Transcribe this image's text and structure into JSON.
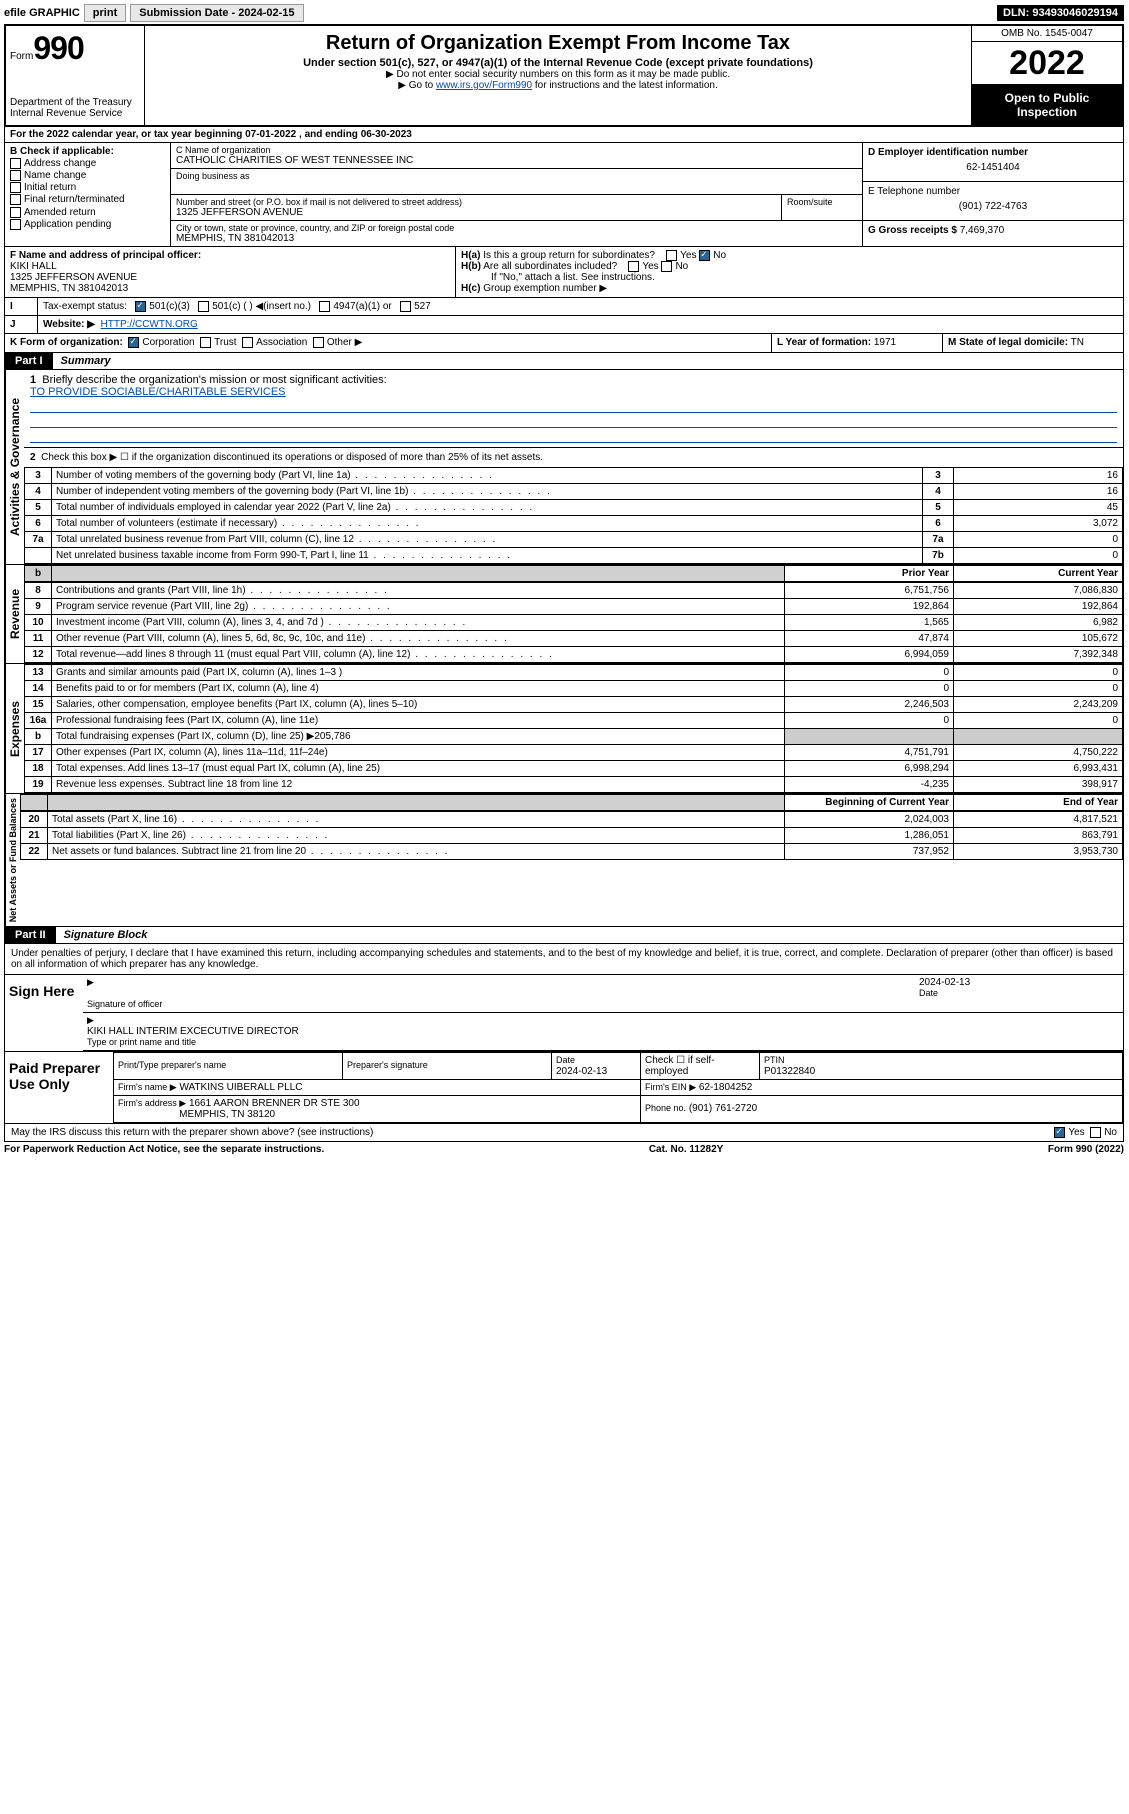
{
  "topbar": {
    "efile": "efile GRAPHIC",
    "print": "print",
    "sub_label": "Submission Date - 2024-02-15",
    "dln": "DLN: 93493046029194"
  },
  "header": {
    "form": "Form",
    "num": "990",
    "dept": "Department of the Treasury",
    "irs": "Internal Revenue Service",
    "title": "Return of Organization Exempt From Income Tax",
    "sub": "Under section 501(c), 527, or 4947(a)(1) of the Internal Revenue Code (except private foundations)",
    "note1": "▶ Do not enter social security numbers on this form as it may be made public.",
    "note2_pre": "▶ Go to ",
    "note2_link": "www.irs.gov/Form990",
    "note2_post": " for instructions and the latest information.",
    "omb": "OMB No. 1545-0047",
    "year": "2022",
    "open": "Open to Public Inspection"
  },
  "lineA": "For the 2022 calendar year, or tax year beginning 07-01-2022  , and ending 06-30-2023",
  "boxB": {
    "label": "B Check if applicable:",
    "items": [
      "Address change",
      "Name change",
      "Initial return",
      "Final return/terminated",
      "Amended return",
      "Application pending"
    ]
  },
  "boxC": {
    "label": "C Name of organization",
    "name": "CATHOLIC CHARITIES OF WEST TENNESSEE INC",
    "dba": "Doing business as",
    "street_lbl": "Number and street (or P.O. box if mail is not delivered to street address)",
    "suite": "Room/suite",
    "street": "1325 JEFFERSON AVENUE",
    "city_lbl": "City or town, state or province, country, and ZIP or foreign postal code",
    "city": "MEMPHIS, TN  381042013"
  },
  "boxD": {
    "label": "D Employer identification number",
    "val": "62-1451404"
  },
  "boxE": {
    "label": "E Telephone number",
    "val": "(901) 722-4763"
  },
  "boxG": {
    "label": "G Gross receipts $",
    "val": "7,469,370"
  },
  "boxF": {
    "label": "F Name and address of principal officer:",
    "name": "KIKI HALL",
    "addr1": "1325 JEFFERSON AVENUE",
    "addr2": "MEMPHIS, TN  381042013"
  },
  "boxH": {
    "a": "Is this a group return for subordinates?",
    "b": "Are all subordinates included?",
    "c": "If \"No,\" attach a list. See instructions.",
    "d": "Group exemption number ▶"
  },
  "boxI": {
    "label": "Tax-exempt status:",
    "opts": [
      "501(c)(3)",
      "501(c) (   ) ◀(insert no.)",
      "4947(a)(1) or",
      "527"
    ]
  },
  "boxJ": {
    "label": "Website: ▶",
    "val": "HTTP://CCWTN.ORG"
  },
  "boxK": {
    "label": "K Form of organization:",
    "opts": [
      "Corporation",
      "Trust",
      "Association",
      "Other ▶"
    ]
  },
  "boxL": {
    "label": "L Year of formation:",
    "val": "1971"
  },
  "boxM": {
    "label": "M State of legal domicile:",
    "val": "TN"
  },
  "part1": {
    "tag": "Part I",
    "title": "Summary"
  },
  "summary": {
    "q1": "Briefly describe the organization's mission or most significant activities:",
    "mission": "TO PROVIDE SOCIABLE/CHARITABLE SERVICES",
    "q2": "Check this box ▶ ☐  if the organization discontinued its operations or disposed of more than 25% of its net assets.",
    "lines_gov": [
      {
        "n": "3",
        "d": "Number of voting members of the governing body (Part VI, line 1a)",
        "r": "3",
        "v": "16"
      },
      {
        "n": "4",
        "d": "Number of independent voting members of the governing body (Part VI, line 1b)",
        "r": "4",
        "v": "16"
      },
      {
        "n": "5",
        "d": "Total number of individuals employed in calendar year 2022 (Part V, line 2a)",
        "r": "5",
        "v": "45"
      },
      {
        "n": "6",
        "d": "Total number of volunteers (estimate if necessary)",
        "r": "6",
        "v": "3,072"
      },
      {
        "n": "7a",
        "d": "Total unrelated business revenue from Part VIII, column (C), line 12",
        "r": "7a",
        "v": "0"
      },
      {
        "n": "",
        "d": "Net unrelated business taxable income from Form 990-T, Part I, line 11",
        "r": "7b",
        "v": "0"
      }
    ],
    "hdr_prior": "Prior Year",
    "hdr_curr": "Current Year",
    "rev": [
      {
        "n": "8",
        "d": "Contributions and grants (Part VIII, line 1h)",
        "p": "6,751,756",
        "c": "7,086,830"
      },
      {
        "n": "9",
        "d": "Program service revenue (Part VIII, line 2g)",
        "p": "192,864",
        "c": "192,864"
      },
      {
        "n": "10",
        "d": "Investment income (Part VIII, column (A), lines 3, 4, and 7d )",
        "p": "1,565",
        "c": "6,982"
      },
      {
        "n": "11",
        "d": "Other revenue (Part VIII, column (A), lines 5, 6d, 8c, 9c, 10c, and 11e)",
        "p": "47,874",
        "c": "105,672"
      },
      {
        "n": "12",
        "d": "Total revenue—add lines 8 through 11 (must equal Part VIII, column (A), line 12)",
        "p": "6,994,059",
        "c": "7,392,348"
      }
    ],
    "exp": [
      {
        "n": "13",
        "d": "Grants and similar amounts paid (Part IX, column (A), lines 1–3 )",
        "p": "0",
        "c": "0"
      },
      {
        "n": "14",
        "d": "Benefits paid to or for members (Part IX, column (A), line 4)",
        "p": "0",
        "c": "0"
      },
      {
        "n": "15",
        "d": "Salaries, other compensation, employee benefits (Part IX, column (A), lines 5–10)",
        "p": "2,246,503",
        "c": "2,243,209"
      },
      {
        "n": "16a",
        "d": "Professional fundraising fees (Part IX, column (A), line 11e)",
        "p": "0",
        "c": "0"
      },
      {
        "n": "b",
        "d": "Total fundraising expenses (Part IX, column (D), line 25) ▶205,786",
        "p": "",
        "c": "",
        "shade": true
      },
      {
        "n": "17",
        "d": "Other expenses (Part IX, column (A), lines 11a–11d, 11f–24e)",
        "p": "4,751,791",
        "c": "4,750,222"
      },
      {
        "n": "18",
        "d": "Total expenses. Add lines 13–17 (must equal Part IX, column (A), line 25)",
        "p": "6,998,294",
        "c": "6,993,431"
      },
      {
        "n": "19",
        "d": "Revenue less expenses. Subtract line 18 from line 12",
        "p": "-4,235",
        "c": "398,917"
      }
    ],
    "hdr_beg": "Beginning of Current Year",
    "hdr_end": "End of Year",
    "net": [
      {
        "n": "20",
        "d": "Total assets (Part X, line 16)",
        "p": "2,024,003",
        "c": "4,817,521"
      },
      {
        "n": "21",
        "d": "Total liabilities (Part X, line 26)",
        "p": "1,286,051",
        "c": "863,791"
      },
      {
        "n": "22",
        "d": "Net assets or fund balances. Subtract line 21 from line 20",
        "p": "737,952",
        "c": "3,953,730"
      }
    ]
  },
  "part2": {
    "tag": "Part II",
    "title": "Signature Block"
  },
  "sig": {
    "perjury": "Under penalties of perjury, I declare that I have examined this return, including accompanying schedules and statements, and to the best of my knowledge and belief, it is true, correct, and complete. Declaration of preparer (other than officer) is based on all information of which preparer has any knowledge.",
    "sign_here": "Sign Here",
    "sig_officer": "Signature of officer",
    "date_lbl": "Date",
    "date_val": "2024-02-13",
    "officer_name": "KIKI HALL INTERIM EXCECUTIVE DIRECTOR",
    "type_name": "Type or print name and title",
    "paid": "Paid Preparer Use Only",
    "prep_name_lbl": "Print/Type preparer's name",
    "prep_sig_lbl": "Preparer's signature",
    "prep_date": "2024-02-13",
    "check_if": "Check ☐ if self-employed",
    "ptin_lbl": "PTIN",
    "ptin": "P01322840",
    "firm_name_lbl": "Firm's name   ▶",
    "firm_name": "WATKINS UIBERALL PLLC",
    "firm_ein_lbl": "Firm's EIN ▶",
    "firm_ein": "62-1804252",
    "firm_addr_lbl": "Firm's address ▶",
    "firm_addr1": "1661 AARON BRENNER DR STE 300",
    "firm_addr2": "MEMPHIS, TN  38120",
    "phone_lbl": "Phone no.",
    "phone": "(901) 761-2720",
    "discuss": "May the IRS discuss this return with the preparer shown above? (see instructions)"
  },
  "footer": {
    "left": "For Paperwork Reduction Act Notice, see the separate instructions.",
    "mid": "Cat. No. 11282Y",
    "right": "Form 990 (2022)"
  },
  "vert": {
    "gov": "Activities & Governance",
    "rev": "Revenue",
    "exp": "Expenses",
    "net": "Net Assets or Fund Balances"
  }
}
